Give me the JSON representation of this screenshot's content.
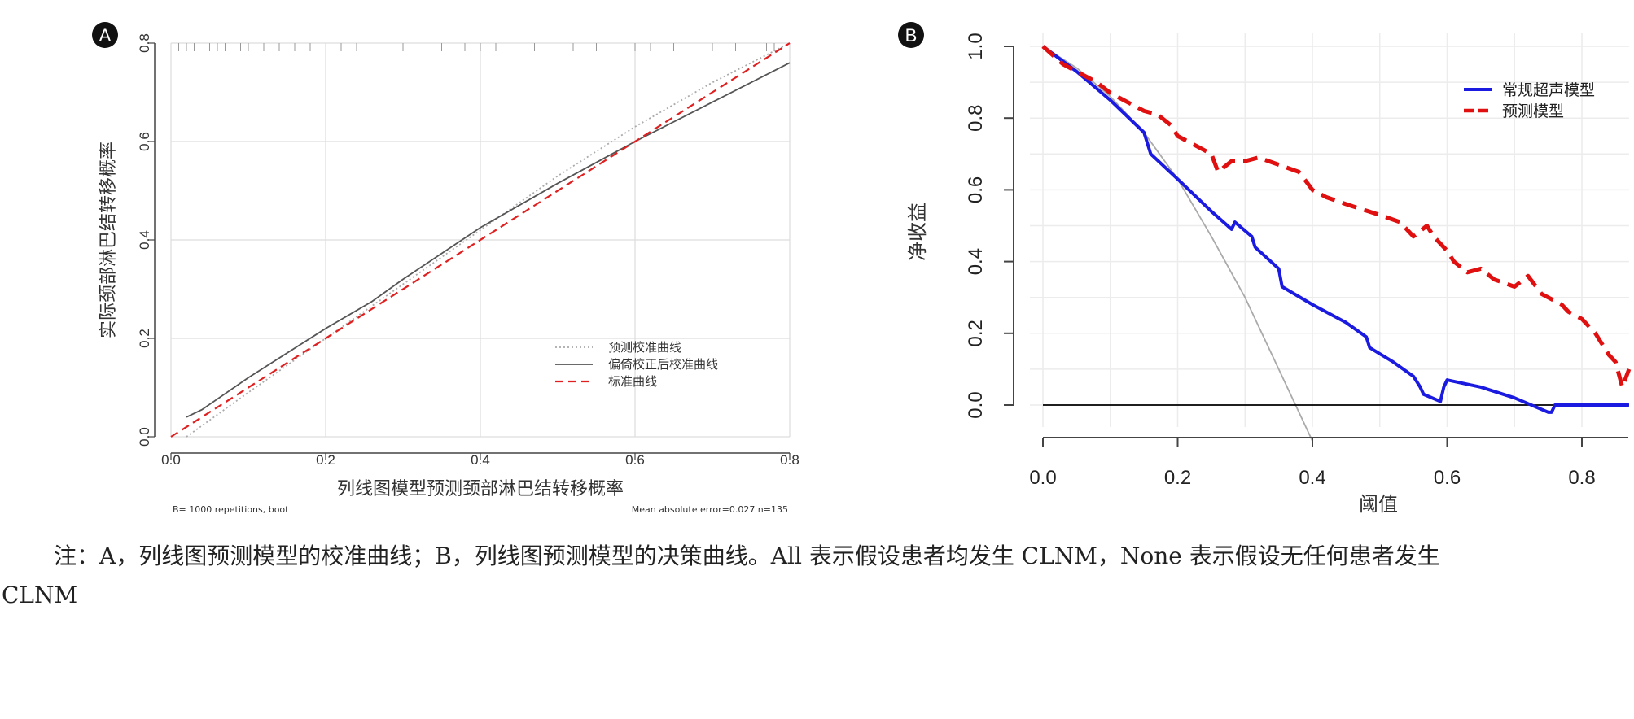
{
  "chart_data": [
    {
      "panel": "A",
      "type": "line",
      "xlabel": "列线图模型预测颈部淋巴结转移概率",
      "ylabel": "实际颈部淋巴结转移概率",
      "xlim": [
        0,
        0.8
      ],
      "ylim": [
        0,
        0.8
      ],
      "xticks": [
        "0.0",
        "0.2",
        "0.4",
        "0.6",
        "0.8"
      ],
      "yticks": [
        "0.0",
        "0.2",
        "0.4",
        "0.6",
        "0.8"
      ],
      "grid": true,
      "legend_position": "bottom-right",
      "footnote_left": "B= 1000 repetitions, boot",
      "footnote_right": "Mean absolute error=0.027 n=135",
      "series": [
        {
          "name": "预测校准曲线",
          "style": "dotted",
          "color": "#aaaaaa",
          "x": [
            0.02,
            0.1,
            0.2,
            0.3,
            0.4,
            0.5,
            0.6,
            0.7,
            0.8
          ],
          "y": [
            0.0,
            0.09,
            0.2,
            0.31,
            0.42,
            0.53,
            0.63,
            0.72,
            0.8
          ]
        },
        {
          "name": "偏倚校正后校准曲线",
          "style": "solid",
          "color": "#555555",
          "x": [
            0.02,
            0.04,
            0.1,
            0.2,
            0.26,
            0.3,
            0.4,
            0.5,
            0.6,
            0.7,
            0.8
          ],
          "y": [
            0.04,
            0.055,
            0.12,
            0.22,
            0.275,
            0.32,
            0.425,
            0.515,
            0.6,
            0.68,
            0.76
          ]
        },
        {
          "name": "标准曲线",
          "style": "dashed",
          "color": "#e02020",
          "x": [
            0,
            0.8
          ],
          "y": [
            0,
            0.8
          ]
        }
      ],
      "rug_x": [
        0.01,
        0.02,
        0.03,
        0.05,
        0.06,
        0.07,
        0.09,
        0.1,
        0.12,
        0.14,
        0.16,
        0.18,
        0.19,
        0.22,
        0.24,
        0.3,
        0.35,
        0.38,
        0.4,
        0.42,
        0.45,
        0.47,
        0.52,
        0.55,
        0.6,
        0.62,
        0.65,
        0.7,
        0.73,
        0.75,
        0.77,
        0.78
      ]
    },
    {
      "panel": "B",
      "type": "line",
      "xlabel": "阈值",
      "ylabel": "净收益",
      "xlim": [
        0,
        0.87
      ],
      "ylim": [
        -0.1,
        1.0
      ],
      "xticks": [
        "0.0",
        "0.2",
        "0.4",
        "0.6",
        "0.8"
      ],
      "yticks": [
        "0.0",
        "0.2",
        "0.4",
        "0.6",
        "0.8",
        "1.0"
      ],
      "grid": true,
      "legend_position": "top-right",
      "series": [
        {
          "name": "常规超声模型",
          "style": "solid",
          "color": "#1a1ae0",
          "legend": true,
          "x": [
            0,
            0.05,
            0.1,
            0.15,
            0.16,
            0.2,
            0.25,
            0.28,
            0.285,
            0.31,
            0.315,
            0.35,
            0.355,
            0.4,
            0.45,
            0.48,
            0.485,
            0.52,
            0.55,
            0.56,
            0.565,
            0.59,
            0.595,
            0.6,
            0.65,
            0.7,
            0.75,
            0.755,
            0.76,
            0.8,
            0.87
          ],
          "y": [
            1.0,
            0.93,
            0.85,
            0.76,
            0.7,
            0.63,
            0.54,
            0.49,
            0.51,
            0.47,
            0.44,
            0.38,
            0.33,
            0.28,
            0.23,
            0.19,
            0.16,
            0.12,
            0.08,
            0.05,
            0.03,
            0.01,
            0.05,
            0.07,
            0.05,
            0.02,
            -0.02,
            -0.02,
            0.0,
            0.0,
            0.0
          ]
        },
        {
          "name": "预测模型",
          "style": "dashed",
          "color": "#e01010",
          "legend": true,
          "x": [
            0,
            0.03,
            0.05,
            0.08,
            0.1,
            0.15,
            0.17,
            0.19,
            0.2,
            0.23,
            0.25,
            0.26,
            0.28,
            0.3,
            0.32,
            0.35,
            0.38,
            0.4,
            0.42,
            0.45,
            0.5,
            0.53,
            0.55,
            0.57,
            0.58,
            0.6,
            0.61,
            0.63,
            0.65,
            0.67,
            0.7,
            0.72,
            0.74,
            0.77,
            0.78,
            0.8,
            0.82,
            0.84,
            0.85,
            0.86,
            0.87
          ],
          "y": [
            1.0,
            0.95,
            0.93,
            0.9,
            0.87,
            0.82,
            0.81,
            0.78,
            0.75,
            0.72,
            0.7,
            0.65,
            0.68,
            0.68,
            0.69,
            0.67,
            0.65,
            0.6,
            0.58,
            0.56,
            0.53,
            0.51,
            0.47,
            0.5,
            0.47,
            0.43,
            0.4,
            0.37,
            0.38,
            0.35,
            0.33,
            0.36,
            0.31,
            0.28,
            0.26,
            0.24,
            0.2,
            0.14,
            0.12,
            0.05,
            0.1
          ]
        },
        {
          "name": "All",
          "style": "solid",
          "color": "#aaaaaa",
          "legend": false,
          "x": [
            0,
            0.05,
            0.1,
            0.15,
            0.2,
            0.25,
            0.3,
            0.35,
            0.4
          ],
          "y": [
            1.0,
            0.94,
            0.86,
            0.76,
            0.63,
            0.47,
            0.3,
            0.1,
            -0.1
          ]
        },
        {
          "name": "None",
          "style": "solid",
          "color": "#000000",
          "legend": false,
          "x": [
            0,
            0.87
          ],
          "y": [
            0,
            0
          ]
        }
      ]
    }
  ],
  "panels": {
    "a_label": "A",
    "b_label": "B"
  },
  "caption": {
    "line1": "注：A，列线图预测模型的校准曲线；B，列线图预测模型的决策曲线。All 表示假设患者均发生 CLNM，None 表示假设无任何患者发生",
    "line2": "CLNM"
  }
}
